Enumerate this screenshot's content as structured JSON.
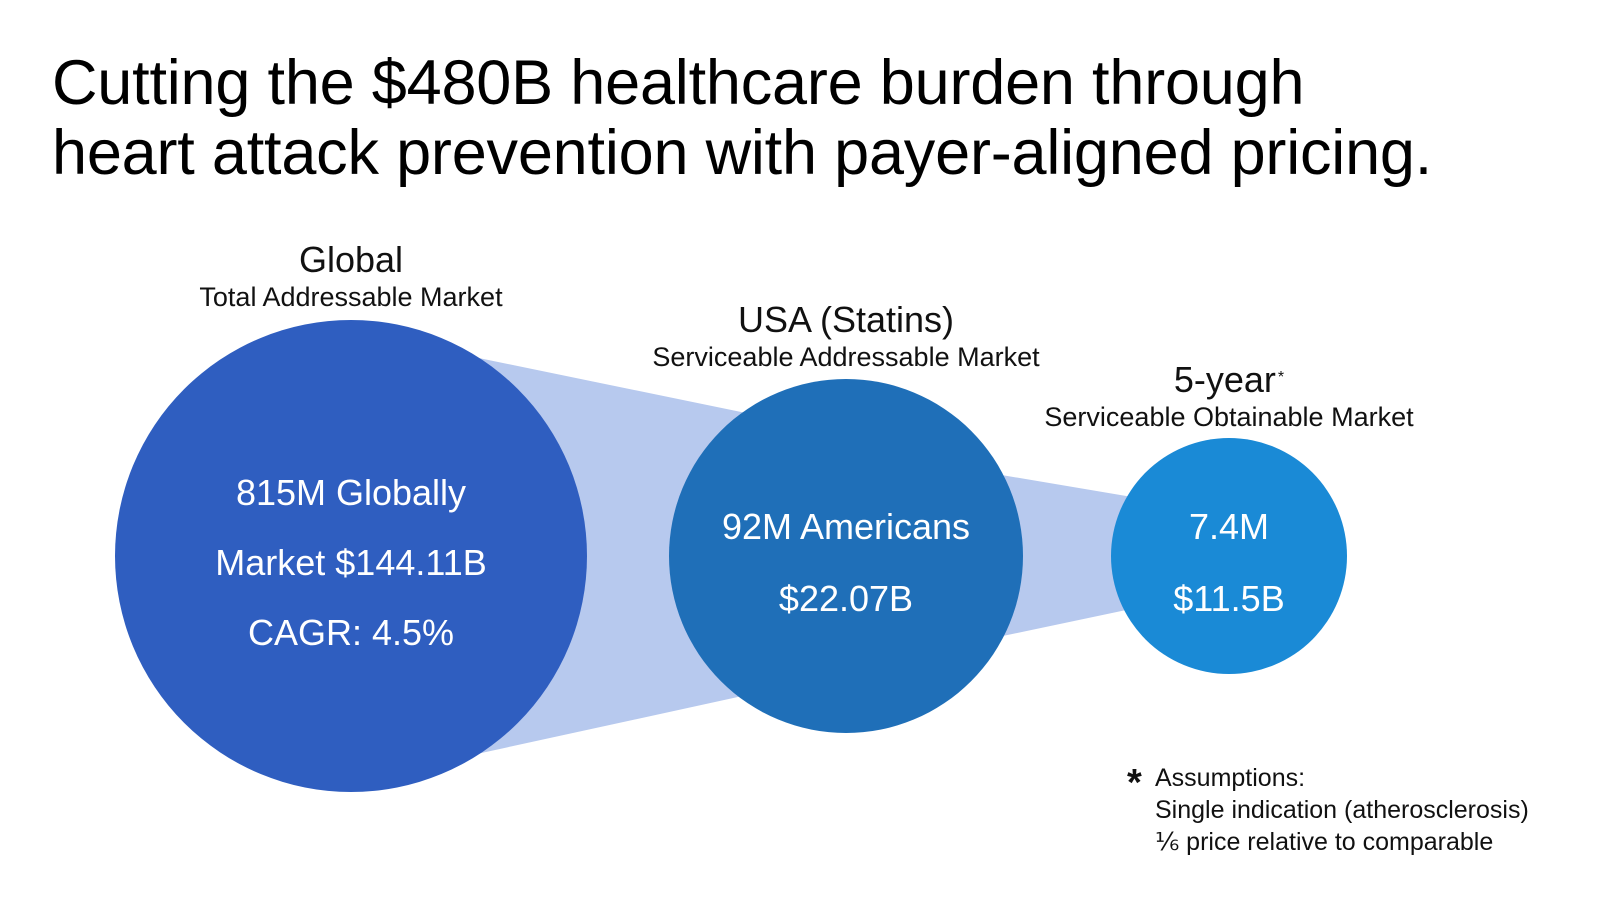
{
  "title": {
    "line1": "Cutting the $480B healthcare burden through",
    "line2": "heart attack prevention with payer-aligned pricing."
  },
  "colors": {
    "circle_global": "#2f5ec0",
    "circle_usa": "#1f6fb8",
    "circle_5yr": "#1a8ad6",
    "connector": "#b7c9ee"
  },
  "markets": [
    {
      "heading": "Global",
      "subheading": "Total Addressable Market",
      "lines": [
        "815M Globally",
        "Market $144.11B",
        "CAGR: 4.5%"
      ]
    },
    {
      "heading": "USA (Statins)",
      "subheading": "Serviceable Addressable Market",
      "lines": [
        "92M Americans",
        "$22.07B"
      ]
    },
    {
      "heading": "5-year",
      "heading_mark": "*",
      "subheading": "Serviceable Obtainable Market",
      "lines": [
        "7.4M",
        "$11.5B"
      ]
    }
  ],
  "footnote": {
    "symbol": "*",
    "lines": [
      "Assumptions:",
      "Single indication (atherosclerosis)",
      "⅙ price relative to comparable"
    ]
  }
}
